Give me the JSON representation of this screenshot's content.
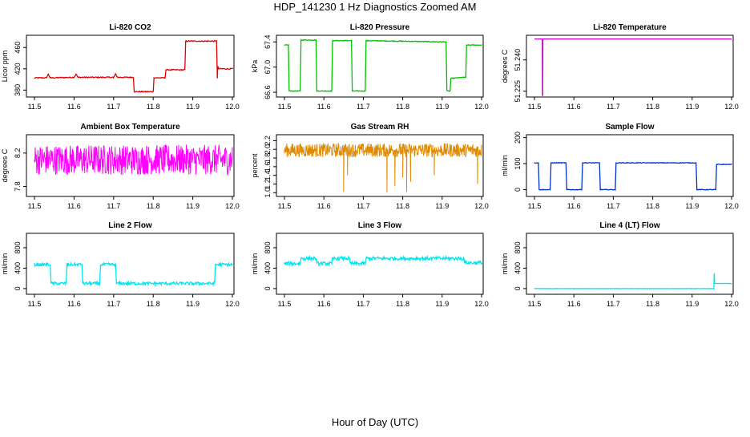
{
  "title": "HDP_141230  1 Hz Diagnostics Zoomed AM",
  "xlabel": "Hour of Day (UTC)",
  "x_ticks": [
    "11.5",
    "11.6",
    "11.7",
    "11.8",
    "11.9",
    "12.0"
  ],
  "chart_data": [
    {
      "type": "line",
      "title": "Li-820 CO2",
      "ylabel": "Licor ppm",
      "color": "#e00000",
      "xlim": [
        11.5,
        12.0
      ],
      "ylim": [
        370,
        480
      ],
      "y_ticks": [
        "380",
        "420",
        "460"
      ],
      "series": [
        {
          "x": [
            11.5,
            11.53,
            11.535,
            11.54,
            11.6,
            11.605,
            11.61,
            11.7,
            11.705,
            11.71,
            11.75,
            11.752,
            11.8,
            11.802,
            11.83,
            11.832,
            11.88,
            11.882,
            11.96,
            11.962,
            11.963,
            11.965,
            12.0
          ],
          "y": [
            403,
            403,
            410,
            403,
            404,
            410,
            404,
            404,
            410,
            404,
            404,
            377,
            377,
            403,
            403,
            418,
            418,
            472,
            472,
            402,
            425,
            420,
            420
          ],
          "noise": 1
        }
      ]
    },
    {
      "type": "line",
      "title": "Li-820 Pressure",
      "ylabel": "kPa",
      "color": "#00c000",
      "xlim": [
        11.5,
        12.0
      ],
      "ylim": [
        66.55,
        67.48
      ],
      "y_ticks": [
        "66.6",
        "67.0",
        "67.4"
      ],
      "series": [
        {
          "x": [
            11.5,
            11.51,
            11.512,
            11.54,
            11.542,
            11.58,
            11.582,
            11.62,
            11.622,
            11.67,
            11.672,
            11.705,
            11.707,
            11.91,
            11.912,
            11.92,
            11.922,
            11.96,
            11.962,
            11.98,
            12.0
          ],
          "y": [
            67.35,
            67.35,
            66.62,
            66.62,
            67.43,
            67.43,
            66.62,
            66.62,
            67.42,
            67.42,
            66.62,
            66.62,
            67.42,
            67.4,
            66.62,
            66.62,
            66.82,
            66.84,
            67.35,
            67.35,
            67.35
          ],
          "noise": 0.006
        }
      ]
    },
    {
      "type": "line",
      "title": "Li-820 Temperature",
      "ylabel": "degrees C",
      "color": "#cc00cc",
      "xlim": [
        11.5,
        12.0
      ],
      "ylim": [
        51.223,
        51.251
      ],
      "y_ticks": [
        "51.225",
        "51.240"
      ],
      "series": [
        {
          "x": [
            11.5,
            11.52,
            11.5205,
            11.521,
            11.5215,
            12.0
          ],
          "y": [
            51.25,
            51.25,
            51.223,
            51.223,
            51.25,
            51.25
          ],
          "noise": 0
        }
      ]
    },
    {
      "type": "line",
      "title": "Ambient Box Temperature",
      "ylabel": "degrees C",
      "color": "#ff00ff",
      "xlim": [
        11.5,
        12.0
      ],
      "ylim": [
        7.7,
        8.4
      ],
      "y_ticks": [
        "7.8",
        "8.2"
      ],
      "series": [
        {
          "x": [
            11.5,
            12.0
          ],
          "y": [
            8.12,
            8.12
          ],
          "noise": 0.18,
          "dense": true
        }
      ]
    },
    {
      "type": "line",
      "title": "Gas Stream RH",
      "ylabel": "percent",
      "color": "#e08a00",
      "xlim": [
        11.5,
        12.0
      ],
      "ylim": [
        0.95,
        2.3
      ],
      "y_ticks": [
        "1.0",
        "1.2",
        "1.4",
        "1.6",
        "1.8",
        "2.0",
        "2.2"
      ],
      "series": [
        {
          "x": [
            11.5,
            12.0
          ],
          "y": [
            1.98,
            1.98
          ],
          "noise": 0.16,
          "dense": true
        }
      ],
      "dips": [
        [
          11.65,
          1.02
        ],
        [
          11.66,
          1.4
        ],
        [
          11.76,
          1.0
        ],
        [
          11.78,
          1.15
        ],
        [
          11.8,
          1.35
        ],
        [
          11.81,
          1.02
        ],
        [
          11.82,
          1.25
        ],
        [
          11.88,
          1.4
        ],
        [
          11.99,
          1.2
        ]
      ]
    },
    {
      "type": "line",
      "title": "Sample Flow",
      "ylabel": "ml/min",
      "color": "#0033cc",
      "xlim": [
        11.5,
        12.0
      ],
      "ylim": [
        -20,
        205
      ],
      "y_ticks": [
        "0",
        "100",
        "200"
      ],
      "series": [
        {
          "x": [
            11.5,
            11.51,
            11.512,
            11.54,
            11.542,
            11.58,
            11.582,
            11.62,
            11.622,
            11.665,
            11.667,
            11.705,
            11.707,
            11.91,
            11.912,
            11.96,
            11.962,
            11.98,
            12.0
          ],
          "y": [
            103,
            103,
            0,
            0,
            103,
            103,
            0,
            0,
            103,
            103,
            0,
            0,
            103,
            103,
            0,
            0,
            97,
            97,
            97
          ],
          "noise": 1.2
        }
      ]
    },
    {
      "type": "line",
      "title": "Line 2 Flow",
      "ylabel": "ml/min",
      "color": "#00e5ee",
      "xlim": [
        11.5,
        12.0
      ],
      "ylim": [
        -80,
        1050
      ],
      "y_ticks": [
        "0",
        "400",
        "800"
      ],
      "series": [
        {
          "x": [
            11.5,
            11.54,
            11.542,
            11.58,
            11.582,
            11.62,
            11.622,
            11.665,
            11.667,
            11.705,
            11.707,
            11.955,
            11.957,
            12.0
          ],
          "y": [
            470,
            470,
            100,
            100,
            470,
            470,
            100,
            100,
            470,
            470,
            100,
            100,
            470,
            470
          ],
          "noise": 30
        }
      ]
    },
    {
      "type": "line",
      "title": "Line 3 Flow",
      "ylabel": "ml/min",
      "color": "#00e5ee",
      "xlim": [
        11.5,
        12.0
      ],
      "ylim": [
        -80,
        1050
      ],
      "y_ticks": [
        "0",
        "400",
        "800"
      ],
      "series": [
        {
          "x": [
            11.5,
            11.54,
            11.542,
            11.58,
            11.582,
            11.62,
            11.622,
            11.665,
            11.667,
            11.705,
            11.707,
            11.955,
            11.957,
            12.0
          ],
          "y": [
            490,
            490,
            590,
            590,
            490,
            490,
            590,
            590,
            490,
            490,
            590,
            590,
            505,
            505
          ],
          "noise": 35
        }
      ]
    },
    {
      "type": "line",
      "title": "Line 4 (LT) Flow",
      "ylabel": "ml/min",
      "color": "#00e5ee",
      "xlim": [
        11.5,
        12.0
      ],
      "ylim": [
        -80,
        1050
      ],
      "y_ticks": [
        "0",
        "400",
        "800"
      ],
      "series": [
        {
          "x": [
            11.5,
            11.955,
            11.956,
            11.957,
            11.96,
            12.0
          ],
          "y": [
            0,
            0,
            300,
            100,
            100,
            100
          ],
          "noise": 2
        }
      ]
    }
  ]
}
